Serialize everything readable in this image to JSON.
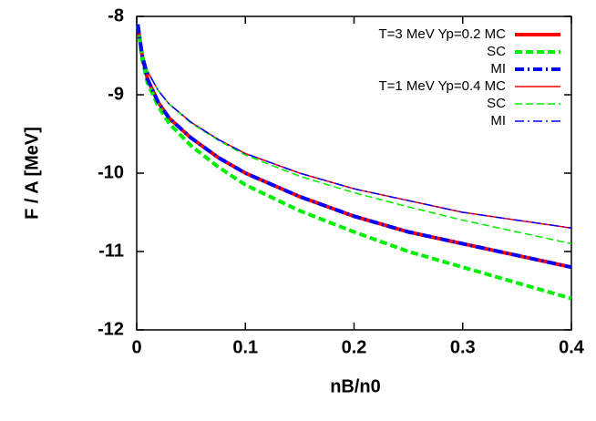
{
  "chart_data": {
    "type": "line",
    "xlabel": "nB/n0",
    "ylabel": "F / A [MeV]",
    "x": [
      0.001,
      0.005,
      0.01,
      0.02,
      0.03,
      0.05,
      0.075,
      0.1,
      0.15,
      0.2,
      0.25,
      0.3,
      0.35,
      0.4
    ],
    "series": [
      {
        "name": "T=3 MeV Yp=0.2 MC",
        "color": "#ff0000",
        "style": "solid",
        "thick": true,
        "values": [
          -8.1,
          -8.5,
          -8.8,
          -9.1,
          -9.3,
          -9.55,
          -9.8,
          -10.0,
          -10.3,
          -10.55,
          -10.75,
          -10.9,
          -11.05,
          -11.2
        ]
      },
      {
        "name": "SC",
        "color": "#00ee00",
        "style": "dashed",
        "thick": true,
        "values": [
          -8.1,
          -8.55,
          -8.85,
          -9.15,
          -9.37,
          -9.65,
          -9.92,
          -10.15,
          -10.48,
          -10.75,
          -11.0,
          -11.2,
          -11.4,
          -11.6
        ]
      },
      {
        "name": "MI",
        "color": "#0000ff",
        "style": "dashdot",
        "thick": true,
        "values": [
          -8.1,
          -8.5,
          -8.8,
          -9.1,
          -9.3,
          -9.55,
          -9.8,
          -10.0,
          -10.3,
          -10.55,
          -10.75,
          -10.9,
          -11.05,
          -11.2
        ]
      },
      {
        "name": "T=1 MeV Yp=0.4 MC",
        "color": "#ff0000",
        "style": "solid",
        "thick": false,
        "values": [
          -8.1,
          -8.45,
          -8.7,
          -8.95,
          -9.12,
          -9.35,
          -9.57,
          -9.75,
          -10.0,
          -10.2,
          -10.35,
          -10.5,
          -10.6,
          -10.7
        ]
      },
      {
        "name": "SC",
        "color": "#00ee00",
        "style": "dashed",
        "thick": false,
        "values": [
          -8.1,
          -8.45,
          -8.7,
          -8.95,
          -9.12,
          -9.36,
          -9.58,
          -9.77,
          -10.04,
          -10.25,
          -10.43,
          -10.6,
          -10.75,
          -10.9
        ]
      },
      {
        "name": "MI",
        "color": "#0000ff",
        "style": "dashdot",
        "thick": false,
        "values": [
          -8.1,
          -8.45,
          -8.7,
          -8.95,
          -9.12,
          -9.35,
          -9.57,
          -9.75,
          -10.0,
          -10.2,
          -10.35,
          -10.5,
          -10.6,
          -10.7
        ]
      }
    ],
    "xlim": [
      0,
      0.4
    ],
    "xticks": [
      0,
      0.1,
      0.2,
      0.3,
      0.4
    ],
    "ylim": [
      -12,
      -8
    ],
    "yticks": [
      -12,
      -11,
      -10,
      -9,
      -8
    ],
    "legend": "top-right"
  }
}
